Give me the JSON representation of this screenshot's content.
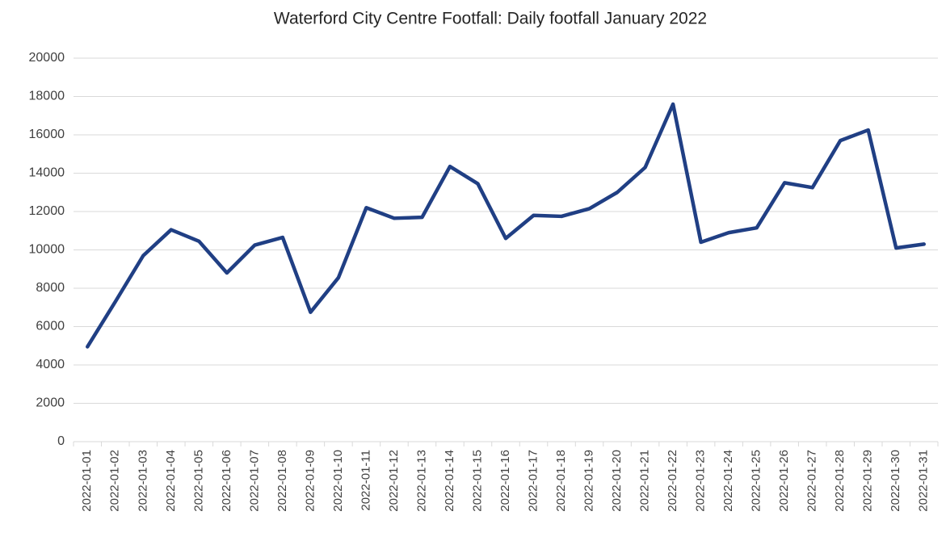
{
  "chart_data": {
    "type": "line",
    "title": "Waterford City Centre Footfall: Daily footfall January 2022",
    "x": [
      "2022-01-01",
      "2022-01-02",
      "2022-01-03",
      "2022-01-04",
      "2022-01-05",
      "2022-01-06",
      "2022-01-07",
      "2022-01-08",
      "2022-01-09",
      "2022-01-10",
      "2022-01-11",
      "2022-01-12",
      "2022-01-13",
      "2022-01-14",
      "2022-01-15",
      "2022-01-16",
      "2022-01-17",
      "2022-01-18",
      "2022-01-19",
      "2022-01-20",
      "2022-01-21",
      "2022-01-22",
      "2022-01-23",
      "2022-01-24",
      "2022-01-25",
      "2022-01-26",
      "2022-01-27",
      "2022-01-28",
      "2022-01-29",
      "2022-01-30",
      "2022-01-31"
    ],
    "values": [
      4950,
      7300,
      9700,
      11050,
      10450,
      8800,
      10250,
      10650,
      6750,
      8550,
      12200,
      11650,
      11700,
      14350,
      13450,
      10600,
      11800,
      11750,
      12150,
      13000,
      14300,
      17600,
      10400,
      10900,
      11150,
      13500,
      13250,
      15700,
      16250,
      10100,
      10300
    ],
    "color": "#203f84",
    "ylim": [
      0,
      20000
    ],
    "yticks": [
      0,
      2000,
      4000,
      6000,
      8000,
      10000,
      12000,
      14000,
      16000,
      18000,
      20000
    ],
    "grid": true
  }
}
